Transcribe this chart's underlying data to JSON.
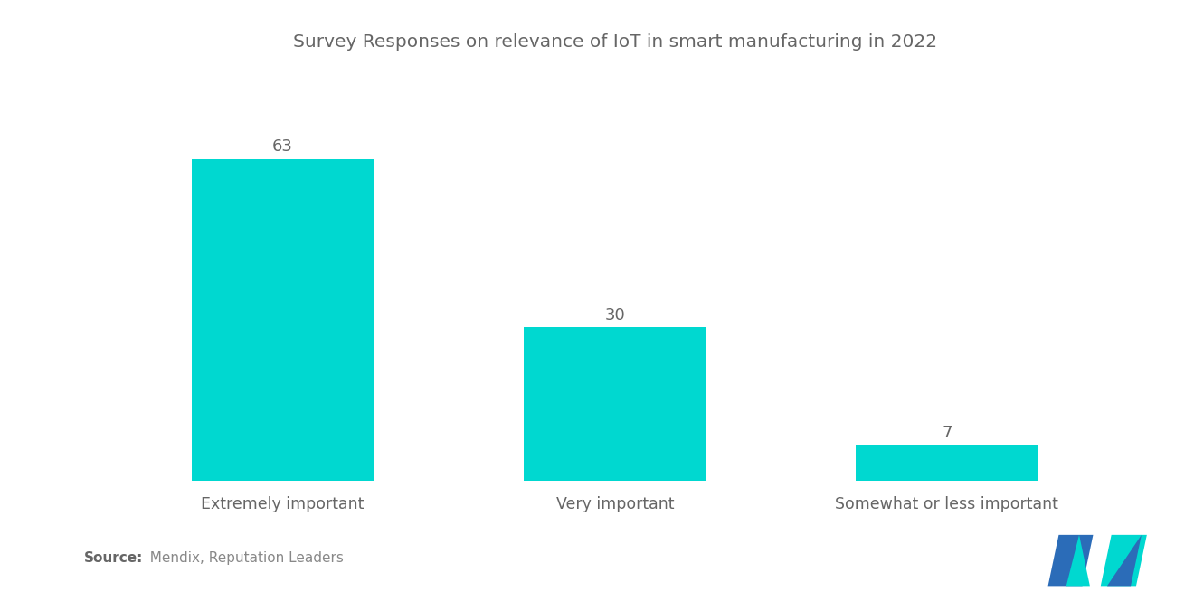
{
  "title": "Survey Responses on relevance of IoT in smart manufacturing in 2022",
  "categories": [
    "Extremely important",
    "Very important",
    "Somewhat or less important"
  ],
  "values": [
    63,
    30,
    7
  ],
  "bar_color": "#00D8D0",
  "background_color": "#ffffff",
  "title_fontsize": 14.5,
  "label_fontsize": 12.5,
  "value_fontsize": 13,
  "source_bold": "Source:",
  "source_rest": "  Mendix, Reputation Leaders",
  "ylim": [
    0,
    80
  ],
  "bar_width": 0.55,
  "logo_blue": "#2B6CB8",
  "logo_teal": "#00D8D0"
}
